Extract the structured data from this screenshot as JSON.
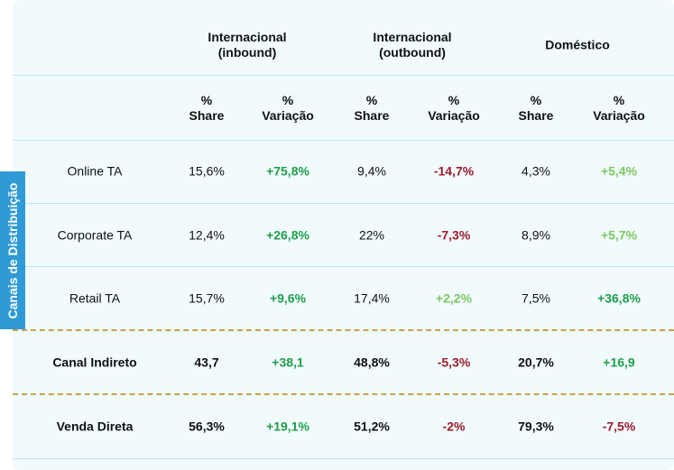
{
  "side_label": "Canais de Distribuição",
  "groups": [
    "Internacional\n(inbound)",
    "Internacional\n(outbound)",
    "Doméstico"
  ],
  "subheaders": [
    "%\nShare",
    "%\nVariação",
    "%\nShare",
    "%\nVariação",
    "%\nShare",
    "%\nVariação"
  ],
  "rows": [
    {
      "label": "Online TA",
      "cells": [
        {
          "text": "15,6%"
        },
        {
          "text": "+75,8%",
          "color": "#1e9e4a"
        },
        {
          "text": "9,4%"
        },
        {
          "text": "-14,7%",
          "color": "#9e1b2b"
        },
        {
          "text": "4,3%"
        },
        {
          "text": "+5,4%",
          "color": "#7cc860"
        }
      ]
    },
    {
      "label": "Corporate TA",
      "cells": [
        {
          "text": "12,4%"
        },
        {
          "text": "+26,8%",
          "color": "#1e9e4a"
        },
        {
          "text": "22%"
        },
        {
          "text": "-7,3%",
          "color": "#9e1b2b"
        },
        {
          "text": "8,9%"
        },
        {
          "text": "+5,7%",
          "color": "#7cc860"
        }
      ]
    },
    {
      "label": "Retail TA",
      "cells": [
        {
          "text": "15,7%"
        },
        {
          "text": "+9,6%",
          "color": "#1e9e4a"
        },
        {
          "text": "17,4%"
        },
        {
          "text": "+2,2%",
          "color": "#7cc860"
        },
        {
          "text": "7,5%"
        },
        {
          "text": "+36,8%",
          "color": "#1e9e4a"
        }
      ]
    },
    {
      "label": "Canal Indireto",
      "bold": true,
      "cells": [
        {
          "text": "43,7"
        },
        {
          "text": "+38,1",
          "color": "#1e9e4a"
        },
        {
          "text": "48,8%"
        },
        {
          "text": "-5,3%",
          "color": "#9e1b2b"
        },
        {
          "text": "20,7%"
        },
        {
          "text": "+16,9",
          "color": "#1e9e4a"
        }
      ]
    },
    {
      "label": "Venda Direta",
      "bold": true,
      "cells": [
        {
          "text": "56,3%"
        },
        {
          "text": "+19,1%",
          "color": "#1e9e4a"
        },
        {
          "text": "51,2%"
        },
        {
          "text": "-2%",
          "color": "#9e1b2b"
        },
        {
          "text": "79,3%"
        },
        {
          "text": "-7,5%",
          "color": "#9e1b2b"
        }
      ]
    }
  ]
}
